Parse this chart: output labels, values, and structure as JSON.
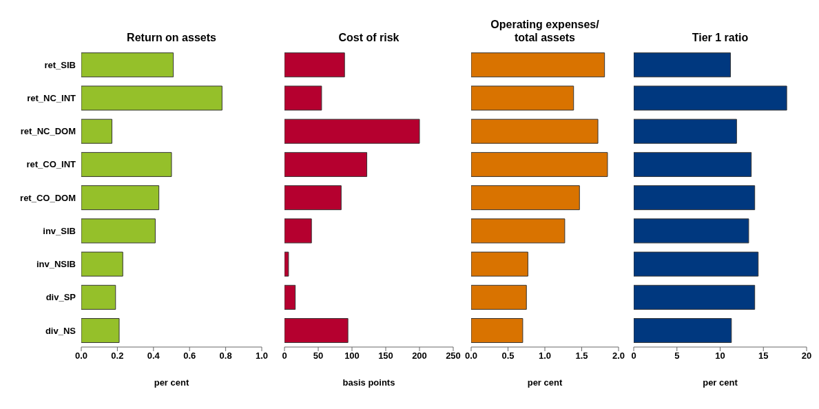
{
  "chart_data": [
    {
      "type": "bar",
      "orientation": "horizontal",
      "title": "Return on assets",
      "xlabel": "per cent",
      "categories": [
        "ret_SIB",
        "ret_NC_INT",
        "ret_NC_DOM",
        "ret_CO_INT",
        "ret_CO_DOM",
        "inv_SIB",
        "inv_NSIB",
        "div_SP",
        "div_NS"
      ],
      "values": [
        0.51,
        0.78,
        0.17,
        0.5,
        0.43,
        0.41,
        0.23,
        0.19,
        0.21
      ],
      "color": "#95c02a",
      "xlim": [
        0,
        1
      ],
      "xticks": [
        {
          "value": 0,
          "label": "0.0"
        },
        0.2,
        0.4,
        0.6,
        0.8,
        {
          "value": 1,
          "label": "1.0"
        }
      ]
    },
    {
      "type": "bar",
      "orientation": "horizontal",
      "title": "Cost of risk",
      "xlabel": "basis points",
      "values": [
        89,
        55,
        200,
        122,
        84,
        40,
        6,
        16,
        94
      ],
      "color": "#b5002f",
      "xlim": [
        0,
        250
      ],
      "xticks": [
        0,
        50,
        100,
        150,
        200,
        250
      ],
      "tick_labels": "x"
    },
    {
      "type": "bar",
      "orientation": "horizontal",
      "title": "Operating expenses/\ntotal assets",
      "xlabel": "per cent",
      "values": [
        1.81,
        1.39,
        1.72,
        1.85,
        1.47,
        1.27,
        0.77,
        0.75,
        0.7
      ],
      "color": "#d97300",
      "xlim": [
        0,
        2
      ],
      "xticks": [
        {
          "value": 0,
          "label": "0.0"
        },
        {
          "value": 0.5,
          "label": "0.5"
        },
        {
          "value": 1,
          "label": "1.0"
        },
        {
          "value": 1.5,
          "label": "1.5"
        },
        {
          "value": 2,
          "label": "2.0"
        }
      ],
      "tick_labels": "x"
    },
    {
      "type": "bar",
      "orientation": "horizontal",
      "title": "Tier 1 ratio",
      "xlabel": "per cent",
      "values": [
        11.2,
        17.7,
        11.9,
        13.6,
        14.0,
        13.3,
        14.4,
        14.0,
        11.3
      ],
      "color": "#00387f",
      "xlim": [
        0,
        20
      ],
      "xticks": [
        0,
        5,
        10,
        15,
        20
      ],
      "tick_labels": "x"
    }
  ]
}
